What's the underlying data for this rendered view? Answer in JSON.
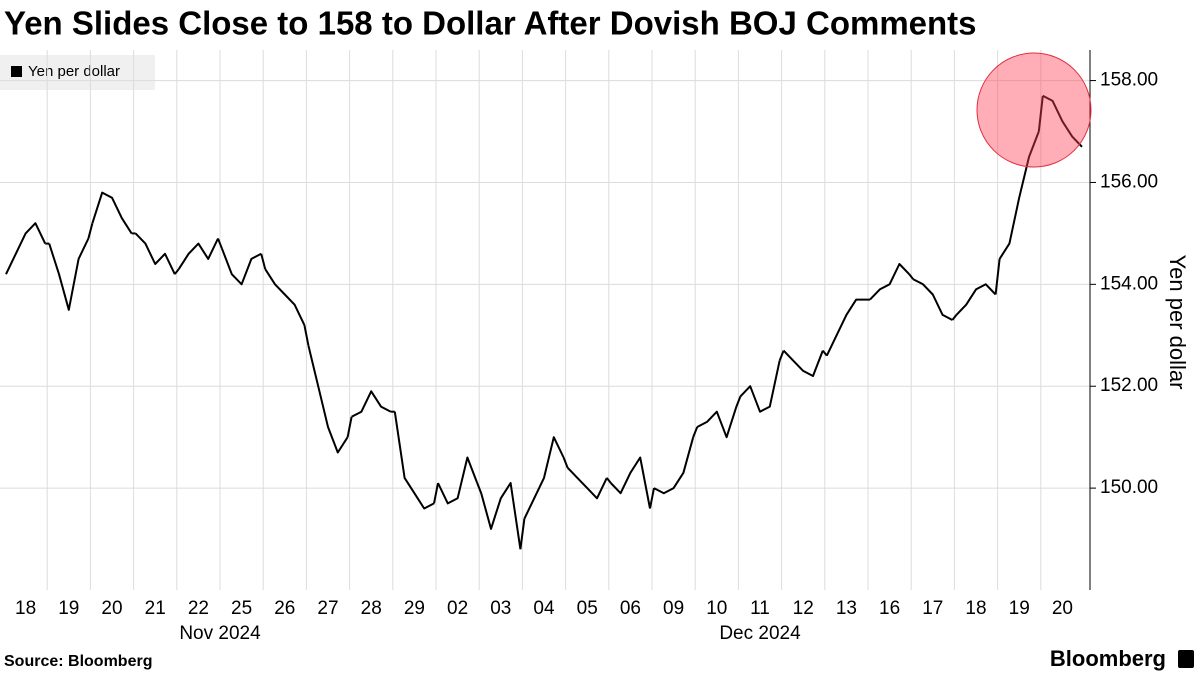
{
  "chart_data": {
    "type": "line",
    "title": "Yen Slides Close to 158 to Dollar After Dovish BOJ Comments",
    "ylabel": "Yen per dollar",
    "source": "Source: Bloomberg",
    "brand": "Bloomberg",
    "months": [
      "Nov 2024",
      "Dec 2024"
    ],
    "ylim": [
      148,
      158.6
    ],
    "yticks": [
      {
        "value": 150,
        "label": "150.00"
      },
      {
        "value": 152,
        "label": "152.00"
      },
      {
        "value": 154,
        "label": "154.00"
      },
      {
        "value": 156,
        "label": "156.00"
      },
      {
        "value": 158,
        "label": "158.00"
      }
    ],
    "grid": true,
    "legend": "top-left",
    "series": [
      {
        "name": "Yen per dollar",
        "color": "#000000",
        "days": [
          {
            "label": "18",
            "values": [
              154.2,
              154.6,
              155.0,
              155.2,
              154.8
            ]
          },
          {
            "label": "19",
            "values": [
              154.8,
              154.2,
              153.5,
              154.5,
              154.9
            ]
          },
          {
            "label": "20",
            "values": [
              155.2,
              155.8,
              155.7,
              155.3,
              155.0
            ]
          },
          {
            "label": "21",
            "values": [
              155.0,
              154.8,
              154.4,
              154.6,
              154.2
            ]
          },
          {
            "label": "22",
            "values": [
              154.3,
              154.6,
              154.8,
              154.5,
              154.9
            ]
          },
          {
            "label": "25",
            "values": [
              154.7,
              154.2,
              154.0,
              154.5,
              154.6
            ]
          },
          {
            "label": "26",
            "values": [
              154.3,
              154.0,
              153.8,
              153.6,
              153.2
            ]
          },
          {
            "label": "27",
            "values": [
              152.8,
              152.0,
              151.2,
              150.7,
              151.0
            ]
          },
          {
            "label": "28",
            "values": [
              151.4,
              151.5,
              151.9,
              151.6,
              151.5
            ]
          },
          {
            "label": "29",
            "values": [
              151.5,
              150.2,
              149.9,
              149.6,
              149.7
            ]
          },
          {
            "label": "02",
            "values": [
              150.1,
              149.7,
              149.8,
              150.6,
              150.1
            ]
          },
          {
            "label": "03",
            "values": [
              149.9,
              149.2,
              149.8,
              150.1,
              148.8
            ]
          },
          {
            "label": "04",
            "values": [
              149.4,
              149.8,
              150.2,
              151.0,
              150.6
            ]
          },
          {
            "label": "05",
            "values": [
              150.4,
              150.2,
              150.0,
              149.8,
              150.2
            ]
          },
          {
            "label": "06",
            "values": [
              150.1,
              149.9,
              150.3,
              150.6,
              149.6
            ]
          },
          {
            "label": "09",
            "values": [
              150.0,
              149.9,
              150.0,
              150.3,
              151.0
            ]
          },
          {
            "label": "10",
            "values": [
              151.2,
              151.3,
              151.5,
              151.0,
              151.6
            ]
          },
          {
            "label": "11",
            "values": [
              151.8,
              152.0,
              151.5,
              151.6,
              152.5
            ]
          },
          {
            "label": "12",
            "values": [
              152.7,
              152.5,
              152.3,
              152.2,
              152.7
            ]
          },
          {
            "label": "13",
            "values": [
              152.6,
              153.0,
              153.4,
              153.7,
              153.7
            ]
          },
          {
            "label": "16",
            "values": [
              153.7,
              153.9,
              154.0,
              154.4,
              154.2
            ]
          },
          {
            "label": "17",
            "values": [
              154.1,
              154.0,
              153.8,
              153.4,
              153.3
            ]
          },
          {
            "label": "18",
            "values": [
              153.4,
              153.6,
              153.9,
              154.0,
              153.8
            ]
          },
          {
            "label": "19",
            "values": [
              154.5,
              154.8,
              155.7,
              156.5,
              157.0
            ]
          },
          {
            "label": "20",
            "values": [
              157.7,
              157.6,
              157.2,
              156.9,
              156.7
            ]
          }
        ]
      }
    ]
  }
}
